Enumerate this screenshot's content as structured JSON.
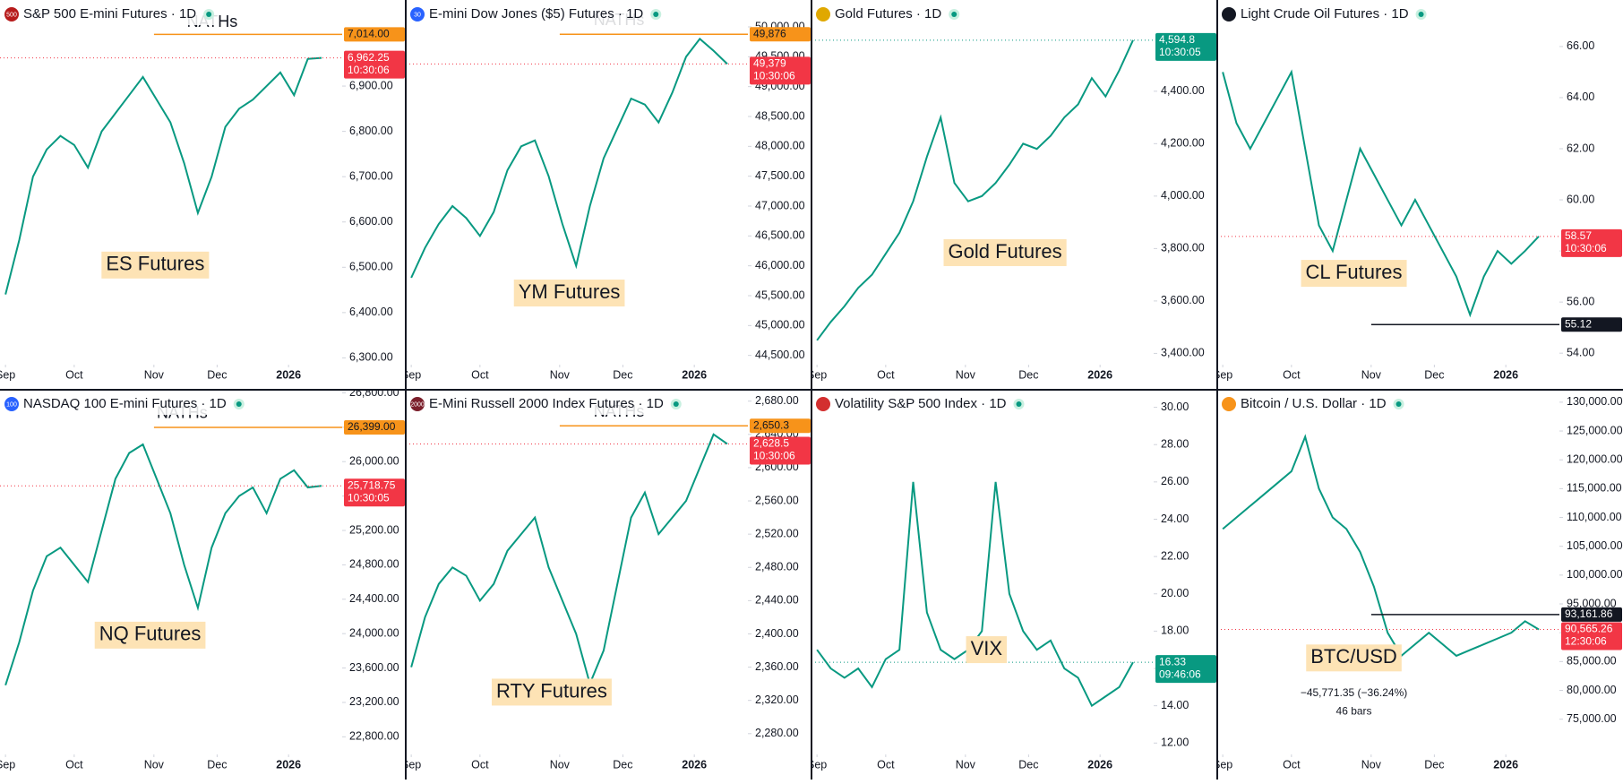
{
  "chart_data": [
    {
      "type": "line",
      "title": "S&P 500 E-mini Futures · 1D",
      "icon_text": "500",
      "color": "#089981",
      "values": [
        6440,
        6560,
        6700,
        6760,
        6790,
        6770,
        6720,
        6800,
        6840,
        6880,
        6920,
        6870,
        6820,
        6730,
        6620,
        6700,
        6810,
        6850,
        6870,
        6900,
        6930,
        6880,
        6960,
        6962.25
      ],
      "xlim": [
        -0.4,
        24.5
      ],
      "xticks": [
        {
          "value": 0,
          "label": "Sep"
        },
        {
          "value": 5,
          "label": "Oct"
        },
        {
          "value": 10.8,
          "label": "Nov"
        },
        {
          "value": 15.4,
          "label": "Dec"
        },
        {
          "value": 20.6,
          "label": "2026"
        }
      ],
      "ylim": [
        6285,
        7090
      ],
      "yticks": [
        {
          "value": 6300,
          "label": "6,300.00"
        },
        {
          "value": 6400,
          "label": "6,400.00"
        },
        {
          "value": 6500,
          "label": "6,500.00"
        },
        {
          "value": 6600,
          "label": "6,600.00"
        },
        {
          "value": 6700,
          "label": "6,700.00"
        },
        {
          "value": 6800,
          "label": "6,800.00"
        },
        {
          "value": 6900,
          "label": "6,900.00"
        }
      ],
      "markers": [
        {
          "value": 7014,
          "label": "7,014.00",
          "color": "#f7931a"
        },
        {
          "value": 6962.25,
          "label": "6,962.25",
          "time": "10:30:06",
          "color": "#f23645"
        }
      ],
      "annotations": [
        "ES Futures",
        "NATHs"
      ]
    },
    {
      "type": "line",
      "title": "E-mini Dow Jones ($5) Futures · 1D",
      "icon_text": "30",
      "color": "#089981",
      "values": [
        45800,
        46300,
        46700,
        47000,
        46800,
        46500,
        46900,
        47600,
        48000,
        48100,
        47500,
        46700,
        46000,
        47000,
        47800,
        48300,
        48800,
        48700,
        48400,
        48900,
        49500,
        49800,
        49600,
        49379
      ],
      "xlim": [
        -0.4,
        24.5
      ],
      "xticks": [
        {
          "value": 0,
          "label": "Sep"
        },
        {
          "value": 5,
          "label": "Oct"
        },
        {
          "value": 10.8,
          "label": "Nov"
        },
        {
          "value": 15.4,
          "label": "Dec"
        },
        {
          "value": 20.6,
          "label": "2026"
        }
      ],
      "ylim": [
        44345,
        50450
      ],
      "yticks": [
        {
          "value": 44500,
          "label": "44,500.00"
        },
        {
          "value": 45000,
          "label": "45,000.00"
        },
        {
          "value": 45500,
          "label": "45,500.00"
        },
        {
          "value": 46000,
          "label": "46,000.00"
        },
        {
          "value": 46500,
          "label": "46,500.00"
        },
        {
          "value": 47000,
          "label": "47,000.00"
        },
        {
          "value": 47500,
          "label": "47,500.00"
        },
        {
          "value": 48000,
          "label": "48,000.00"
        },
        {
          "value": 48500,
          "label": "48,500.00"
        },
        {
          "value": 49000,
          "label": "49,000.00"
        },
        {
          "value": 49500,
          "label": "49,500.00"
        },
        {
          "value": 50000,
          "label": "50,000.00"
        }
      ],
      "markers": [
        {
          "value": 49876,
          "label": "49,876",
          "color": "#f7931a"
        },
        {
          "value": 49379,
          "label": "49,379",
          "time": "10:30:06",
          "color": "#f23645"
        }
      ],
      "annotations": [
        "YM Futures",
        "NATHs"
      ]
    },
    {
      "type": "line",
      "title": "Gold Futures · 1D",
      "color": "#089981",
      "values": [
        3450,
        3520,
        3580,
        3650,
        3700,
        3780,
        3860,
        3980,
        4150,
        4300,
        4050,
        3980,
        4000,
        4050,
        4120,
        4200,
        4180,
        4230,
        4300,
        4350,
        4450,
        4380,
        4480,
        4594.8
      ],
      "xlim": [
        -0.4,
        24.5
      ],
      "xticks": [
        {
          "value": 0,
          "label": "Sep"
        },
        {
          "value": 5,
          "label": "Oct"
        },
        {
          "value": 10.8,
          "label": "Nov"
        },
        {
          "value": 15.4,
          "label": "Dec"
        },
        {
          "value": 20.6,
          "label": "2026"
        }
      ],
      "ylim": [
        3357,
        4748
      ],
      "yticks": [
        {
          "value": 3400,
          "label": "3,400.00"
        },
        {
          "value": 3600,
          "label": "3,600.00"
        },
        {
          "value": 3800,
          "label": "3,800.00"
        },
        {
          "value": 4000,
          "label": "4,000.00"
        },
        {
          "value": 4200,
          "label": "4,200.00"
        },
        {
          "value": 4400,
          "label": "4,400.00"
        }
      ],
      "markers": [
        {
          "value": 4594.8,
          "label": "4,594.8",
          "time": "10:30:05",
          "color": "#089981"
        }
      ],
      "annotations": [
        "Gold Futures"
      ]
    },
    {
      "type": "line",
      "title": "Light Crude Oil Futures · 1D",
      "color": "#089981",
      "values": [
        65,
        63,
        62,
        63,
        64,
        65,
        62,
        59,
        58,
        60,
        62,
        61,
        60,
        59,
        60,
        59,
        58,
        57,
        55.5,
        57,
        58,
        57.5,
        58,
        58.57
      ],
      "xlim": [
        -0.4,
        24.5
      ],
      "xticks": [
        {
          "value": 0,
          "label": "Sep"
        },
        {
          "value": 5,
          "label": "Oct"
        },
        {
          "value": 10.8,
          "label": "Nov"
        },
        {
          "value": 15.4,
          "label": "Dec"
        },
        {
          "value": 20.6,
          "label": "2026"
        }
      ],
      "ylim": [
        53.55,
        67.82
      ],
      "yticks": [
        {
          "value": 54,
          "label": "54.00"
        },
        {
          "value": 56,
          "label": "56.00"
        },
        {
          "value": 58,
          "label": "58.00"
        },
        {
          "value": 60,
          "label": "60.00"
        },
        {
          "value": 62,
          "label": "62.00"
        },
        {
          "value": 64,
          "label": "64.00"
        },
        {
          "value": 66,
          "label": "66.00"
        }
      ],
      "markers": [
        {
          "value": 55.12,
          "label": "55.12",
          "color": "#131722"
        },
        {
          "value": 58.57,
          "label": "58.57",
          "time": "10:30:06",
          "color": "#f23645"
        }
      ],
      "annotations": [
        "CL Futures"
      ]
    },
    {
      "type": "line",
      "title": "NASDAQ 100 E-mini Futures · 1D",
      "icon_text": "100",
      "color": "#089981",
      "values": [
        23400,
        23900,
        24500,
        24900,
        25000,
        24800,
        24600,
        25200,
        25800,
        26100,
        26200,
        25800,
        25400,
        24800,
        24300,
        25000,
        25400,
        25600,
        25700,
        25400,
        25800,
        25900,
        25700,
        25718.75
      ],
      "xlim": [
        -0.4,
        24.5
      ],
      "xticks": [
        {
          "value": 0,
          "label": "Sep"
        },
        {
          "value": 5,
          "label": "Oct"
        },
        {
          "value": 10.8,
          "label": "Nov"
        },
        {
          "value": 15.4,
          "label": "Dec"
        },
        {
          "value": 20.6,
          "label": "2026"
        }
      ],
      "ylim": [
        22595,
        26836
      ],
      "yticks": [
        {
          "value": 22800,
          "label": "22,800.00"
        },
        {
          "value": 23200,
          "label": "23,200.00"
        },
        {
          "value": 23600,
          "label": "23,600.00"
        },
        {
          "value": 24000,
          "label": "24,000.00"
        },
        {
          "value": 24400,
          "label": "24,400.00"
        },
        {
          "value": 24800,
          "label": "24,800.00"
        },
        {
          "value": 25200,
          "label": "25,200.00"
        },
        {
          "value": 25600,
          "label": "25,600.00"
        },
        {
          "value": 26000,
          "label": "26,000.00"
        },
        {
          "value": 26400,
          "label": "26,400.00"
        },
        {
          "value": 26800,
          "label": "26,800.00"
        }
      ],
      "markers": [
        {
          "value": 26399,
          "label": "26,399.00",
          "color": "#f7931a"
        },
        {
          "value": 25718.75,
          "label": "25,718.75",
          "time": "10:30:05",
          "color": "#f23645"
        }
      ],
      "annotations": [
        "NQ Futures",
        "NATHs"
      ]
    },
    {
      "type": "line",
      "title": "E-Mini Russell 2000 Index Futures · 1D",
      "icon_text": "2000",
      "color": "#089981",
      "values": [
        2360,
        2420,
        2460,
        2480,
        2470,
        2440,
        2460,
        2500,
        2520,
        2540,
        2480,
        2440,
        2400,
        2340,
        2380,
        2460,
        2540,
        2570,
        2520,
        2540,
        2560,
        2600,
        2640,
        2628.5
      ],
      "xlim": [
        -0.4,
        24.5
      ],
      "xticks": [
        {
          "value": 0,
          "label": "Sep"
        },
        {
          "value": 5,
          "label": "Oct"
        },
        {
          "value": 10.8,
          "label": "Nov"
        },
        {
          "value": 15.4,
          "label": "Dec"
        },
        {
          "value": 20.6,
          "label": "2026"
        }
      ],
      "ylim": [
        2255,
        2693.7
      ],
      "yticks": [
        {
          "value": 2280,
          "label": "2,280.00"
        },
        {
          "value": 2320,
          "label": "2,320.00"
        },
        {
          "value": 2360,
          "label": "2,360.00"
        },
        {
          "value": 2400,
          "label": "2,400.00"
        },
        {
          "value": 2440,
          "label": "2,440.00"
        },
        {
          "value": 2480,
          "label": "2,480.00"
        },
        {
          "value": 2520,
          "label": "2,520.00"
        },
        {
          "value": 2560,
          "label": "2,560.00"
        },
        {
          "value": 2600,
          "label": "2,600.00"
        },
        {
          "value": 2640,
          "label": "2,640.00"
        },
        {
          "value": 2680,
          "label": "2,680.00"
        }
      ],
      "markers": [
        {
          "value": 2650.3,
          "label": "2,650.3",
          "color": "#f7931a"
        },
        {
          "value": 2628.5,
          "label": "2,628.5",
          "time": "10:30:06",
          "color": "#f23645"
        }
      ],
      "annotations": [
        "RTY Futures",
        "NATHs"
      ]
    },
    {
      "type": "line",
      "title": "Volatility S&P 500 Index · 1D",
      "color": "#089981",
      "values": [
        17,
        16,
        15.5,
        16,
        15,
        16.5,
        17,
        26,
        19,
        17,
        16.5,
        17,
        18,
        26,
        20,
        18,
        17,
        17.5,
        16,
        15.5,
        14,
        14.5,
        15,
        16.33
      ],
      "xlim": [
        -0.4,
        24.5
      ],
      "xticks": [
        {
          "value": 0,
          "label": "Sep"
        },
        {
          "value": 5,
          "label": "Oct"
        },
        {
          "value": 10.8,
          "label": "Nov"
        },
        {
          "value": 15.4,
          "label": "Dec"
        },
        {
          "value": 20.6,
          "label": "2026"
        }
      ],
      "ylim": [
        11.39,
        30.94
      ],
      "yticks": [
        {
          "value": 12,
          "label": "12.00"
        },
        {
          "value": 14,
          "label": "14.00"
        },
        {
          "value": 16,
          "label": "16.00"
        },
        {
          "value": 18,
          "label": "18.00"
        },
        {
          "value": 20,
          "label": "20.00"
        },
        {
          "value": 22,
          "label": "22.00"
        },
        {
          "value": 24,
          "label": "24.00"
        },
        {
          "value": 26,
          "label": "26.00"
        },
        {
          "value": 28,
          "label": "28.00"
        },
        {
          "value": 30,
          "label": "30.00"
        }
      ],
      "markers": [
        {
          "value": 16.33,
          "label": "16.33",
          "time": "09:46:06",
          "color": "#089981"
        }
      ],
      "annotations": [
        "VIX"
      ]
    },
    {
      "type": "line",
      "title": "Bitcoin / U.S. Dollar · 1D",
      "color": "#089981",
      "values": [
        108000,
        110000,
        112000,
        114000,
        116000,
        118000,
        124000,
        115000,
        110000,
        108000,
        104000,
        98000,
        90000,
        86000,
        88000,
        90000,
        88000,
        86000,
        87000,
        88000,
        89000,
        90000,
        92000,
        90565.26
      ],
      "xlim": [
        -0.4,
        24.5
      ],
      "xticks": [
        {
          "value": 0,
          "label": "Sep"
        },
        {
          "value": 5,
          "label": "Oct"
        },
        {
          "value": 10.8,
          "label": "Nov"
        },
        {
          "value": 15.4,
          "label": "Dec"
        },
        {
          "value": 20.6,
          "label": "2026"
        }
      ],
      "ylim": [
        68885,
        132158
      ],
      "yticks": [
        {
          "value": 75000,
          "label": "75,000.00"
        },
        {
          "value": 80000,
          "label": "80,000.00"
        },
        {
          "value": 85000,
          "label": "85,000.00"
        },
        {
          "value": 90000,
          "label": "90,000.00"
        },
        {
          "value": 95000,
          "label": "95,000.00"
        },
        {
          "value": 100000,
          "label": "100,000.00"
        },
        {
          "value": 105000,
          "label": "105,000.00"
        },
        {
          "value": 110000,
          "label": "110,000.00"
        },
        {
          "value": 115000,
          "label": "115,000.00"
        },
        {
          "value": 120000,
          "label": "120,000.00"
        },
        {
          "value": 125000,
          "label": "125,000.00"
        },
        {
          "value": 130000,
          "label": "130,000.00"
        }
      ],
      "markers": [
        {
          "value": 93161.86,
          "label": "93,161.86",
          "color": "#131722"
        },
        {
          "value": 90565.26,
          "label": "90,565.26",
          "time": "12:30:06",
          "color": "#f23645"
        }
      ],
      "annotations": [
        "BTC/USD",
        "−45,771.35 (−36.24%)",
        "46 bars"
      ]
    }
  ]
}
